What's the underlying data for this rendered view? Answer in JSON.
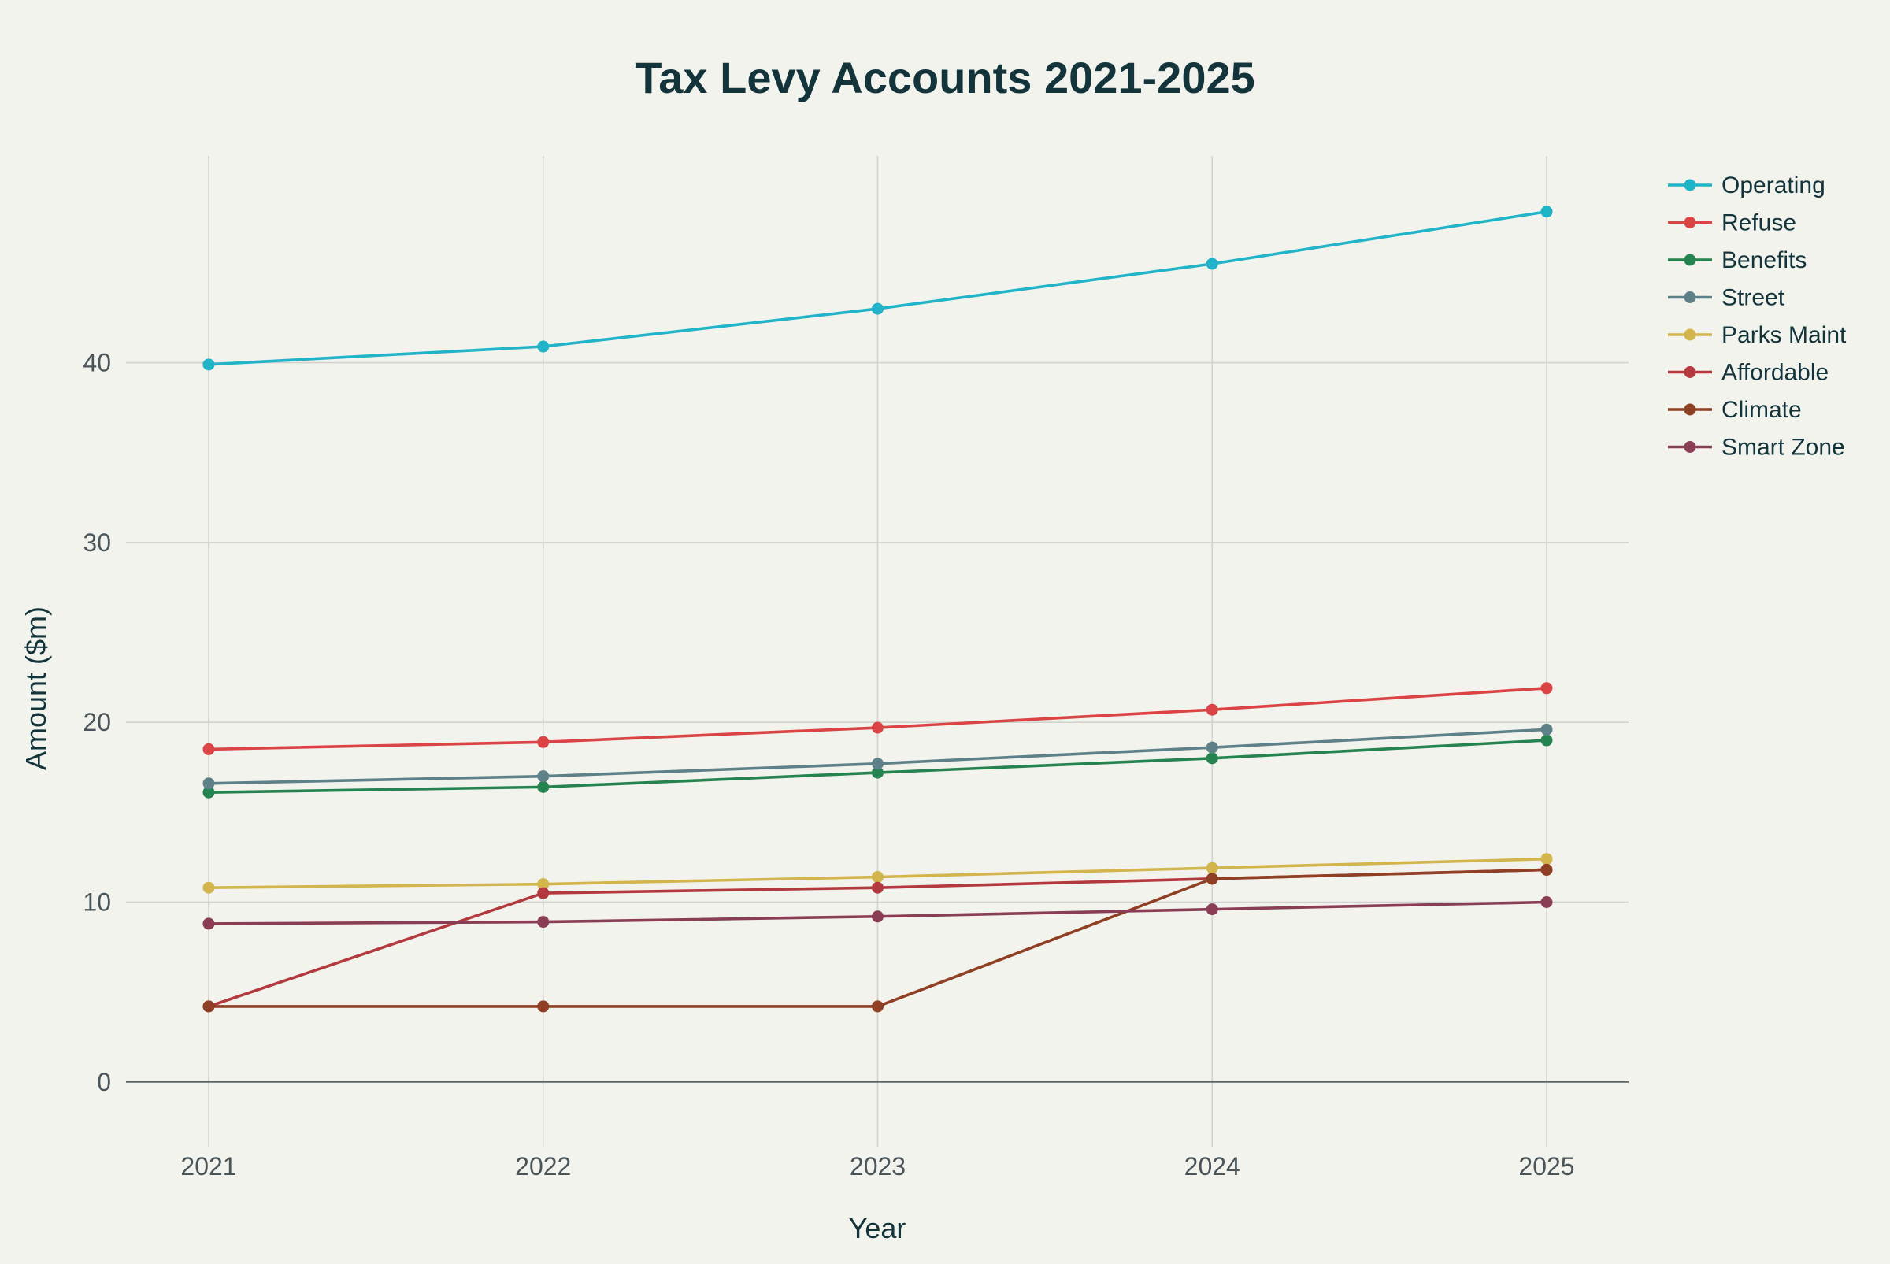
{
  "chart_data": {
    "type": "line",
    "title": "Tax Levy Accounts 2021-2025",
    "xlabel": "Year",
    "ylabel": "Amount ($m)",
    "categories": [
      "2021",
      "2022",
      "2023",
      "2024",
      "2025"
    ],
    "y_ticks": [
      0,
      10,
      20,
      30,
      40
    ],
    "ylim": [
      -3.6,
      51.5
    ],
    "grid": true,
    "legend_position": "top-right",
    "series": [
      {
        "name": "Operating",
        "color": "#21b3c8",
        "values": [
          39.9,
          40.9,
          43.0,
          45.5,
          48.4
        ]
      },
      {
        "name": "Refuse",
        "color": "#da4444",
        "values": [
          18.5,
          18.9,
          19.7,
          20.7,
          21.9
        ]
      },
      {
        "name": "Benefits",
        "color": "#25834f",
        "values": [
          16.1,
          16.4,
          17.2,
          18.0,
          19.0
        ]
      },
      {
        "name": "Street",
        "color": "#5e8189",
        "values": [
          16.6,
          17.0,
          17.7,
          18.6,
          19.6
        ]
      },
      {
        "name": "Parks Maint",
        "color": "#d2b54c",
        "values": [
          10.8,
          11.0,
          11.4,
          11.9,
          12.4
        ]
      },
      {
        "name": "Affordable",
        "color": "#b23a3f",
        "values": [
          4.2,
          10.5,
          10.8,
          11.3,
          11.8
        ]
      },
      {
        "name": "Climate",
        "color": "#8f3f24",
        "values": [
          4.2,
          4.2,
          4.2,
          11.3,
          11.8
        ]
      },
      {
        "name": "Smart Zone",
        "color": "#8a3e55",
        "values": [
          8.8,
          8.9,
          9.2,
          9.6,
          10.0
        ]
      }
    ]
  }
}
